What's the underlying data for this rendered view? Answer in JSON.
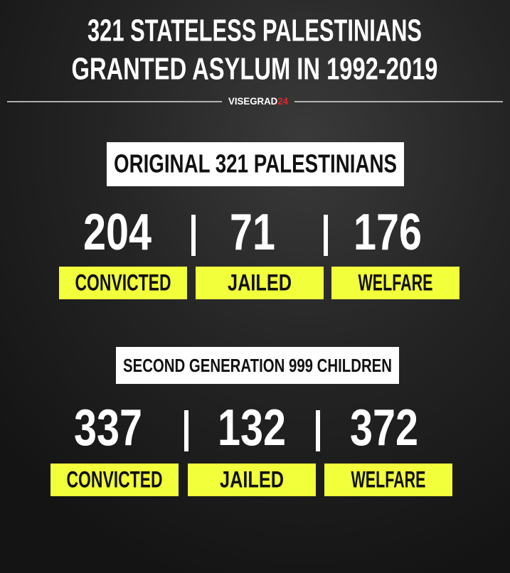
{
  "header": {
    "title_lines": [
      "321 STATELESS PALESTINIANS",
      "GRANTED ASYLUM IN 1992-2019"
    ],
    "brand": {
      "name": "VISEGRAD",
      "number": "24"
    }
  },
  "sections": [
    {
      "heading": "ORIGINAL 321 PALESTINIANS",
      "stats": [
        {
          "value": 204,
          "label": "CONVICTED"
        },
        {
          "value": 71,
          "label": "JAILED"
        },
        {
          "value": 176,
          "label": "WELFARE"
        }
      ]
    },
    {
      "heading": "SECOND GENERATION 999 CHILDREN",
      "stats": [
        {
          "value": 337,
          "label": "CONVICTED"
        },
        {
          "value": 132,
          "label": "JAILED"
        },
        {
          "value": 372,
          "label": "WELFARE"
        }
      ]
    }
  ]
}
